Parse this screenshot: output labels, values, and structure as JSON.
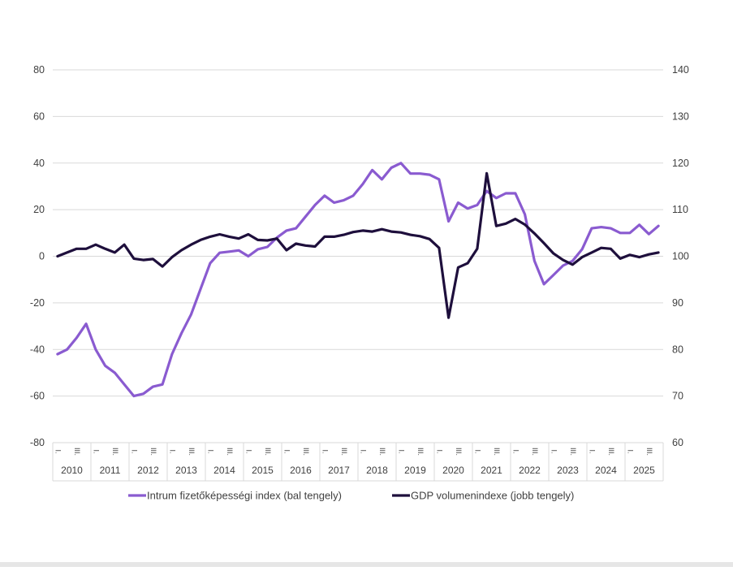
{
  "chart_data": {
    "type": "line",
    "title": "",
    "colors": {
      "intrum": "#8a5bd0",
      "gdp": "#1e0f3c",
      "grid": "#d9d9d9",
      "text": "#404040"
    },
    "left_axis": {
      "ylim": [
        -80,
        80
      ],
      "ticks": [
        "80",
        "60",
        "40",
        "20",
        "0",
        "-20",
        "-40",
        "-60",
        "-80"
      ]
    },
    "right_axis": {
      "ylim": [
        60,
        140
      ],
      "ticks": [
        "140",
        "130",
        "120",
        "110",
        "100",
        "90",
        "80",
        "70",
        "60"
      ]
    },
    "years": [
      "2010",
      "2011",
      "2012",
      "2013",
      "2014",
      "2015",
      "2016",
      "2017",
      "2018",
      "2019",
      "2020",
      "2021",
      "2022",
      "2023",
      "2024",
      "2025"
    ],
    "quarter_labels": [
      "I.",
      "III."
    ],
    "series": [
      {
        "name": "Intrum fizetőképességi index (bal tengely)",
        "axis": "left",
        "color": "#8a5bd0",
        "values": [
          -42,
          -40,
          -35,
          -29,
          -40,
          -47,
          -50,
          -55,
          -60,
          -59,
          -56,
          -55,
          -42,
          -33,
          -25,
          -14,
          -3,
          1.5,
          2,
          2.5,
          0,
          3,
          4,
          8,
          11,
          12,
          17,
          22,
          26,
          23,
          24,
          26,
          31,
          37,
          33,
          38,
          40,
          35.5,
          35.5,
          35,
          33,
          15,
          23,
          20.5,
          22,
          28,
          25,
          27,
          27,
          18,
          -2,
          -12,
          -8,
          -4,
          -2,
          3,
          12,
          12.5,
          12,
          10,
          10,
          13.5,
          9.5,
          13
        ]
      },
      {
        "name": "GDP volumenindexe (jobb tengely)",
        "axis": "right",
        "color": "#1e0f3c",
        "values": [
          100,
          100.8,
          101.6,
          101.6,
          102.5,
          101.6,
          100.8,
          102.5,
          99.5,
          99.2,
          99.4,
          97.8,
          99.8,
          101.3,
          102.5,
          103.5,
          104.2,
          104.7,
          104.2,
          103.8,
          104.7,
          103.5,
          103.4,
          103.8,
          101.3,
          102.7,
          102.3,
          102.1,
          104.2,
          104.2,
          104.6,
          105.2,
          105.5,
          105.3,
          105.8,
          105.3,
          105.1,
          104.6,
          104.3,
          103.7,
          101.8,
          86.8,
          97.6,
          98.5,
          101.6,
          117.8,
          106.5,
          107,
          108,
          106.8,
          104.9,
          102.8,
          100.6,
          99.2,
          98.2,
          99.8,
          100.8,
          101.8,
          101.6,
          99.5,
          100.3,
          99.8,
          100.4,
          100.8
        ]
      }
    ],
    "legend": {
      "position": "bottom",
      "items": [
        "Intrum fizetőképességi index (bal tengely)",
        "GDP volumenindexe (jobb tengely)"
      ]
    },
    "grid": true
  }
}
